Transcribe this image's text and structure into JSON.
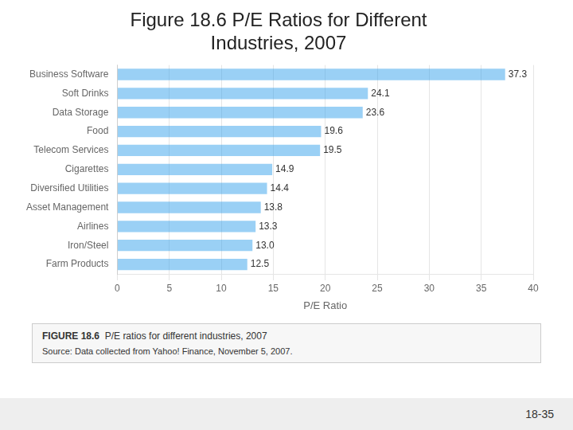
{
  "chart_data": {
    "type": "bar",
    "orientation": "horizontal",
    "title": [
      "Figure 18.6 P/E Ratios for Different",
      "Industries, 2007"
    ],
    "categories": [
      "Business Software",
      "Soft Drinks",
      "Data Storage",
      "Food",
      "Telecom Services",
      "Cigarettes",
      "Diversified Utilities",
      "Asset Management",
      "Airlines",
      "Iron/Steel",
      "Farm Products"
    ],
    "values": [
      37.3,
      24.1,
      23.6,
      19.6,
      19.5,
      14.9,
      14.4,
      13.8,
      13.3,
      13.0,
      12.5
    ],
    "value_labels": [
      "37.3",
      "24.1",
      "23.6",
      "19.6",
      "19.5",
      "14.9",
      "14.4",
      "13.8",
      "13.3",
      "13.0",
      "12.5"
    ],
    "data_labels": true,
    "xlabel": "P/E Ratio",
    "xlim": [
      0,
      40
    ],
    "xticks": [
      0,
      5,
      10,
      15,
      20,
      25,
      30,
      35,
      40
    ],
    "grid": true,
    "annotations": [
      "FIGURE 18.6",
      "  P/E ratios for different industries, 2007",
      "Source: Data collected from Yahoo! Finance, November 5, 2007.",
      "18-35"
    ]
  }
}
